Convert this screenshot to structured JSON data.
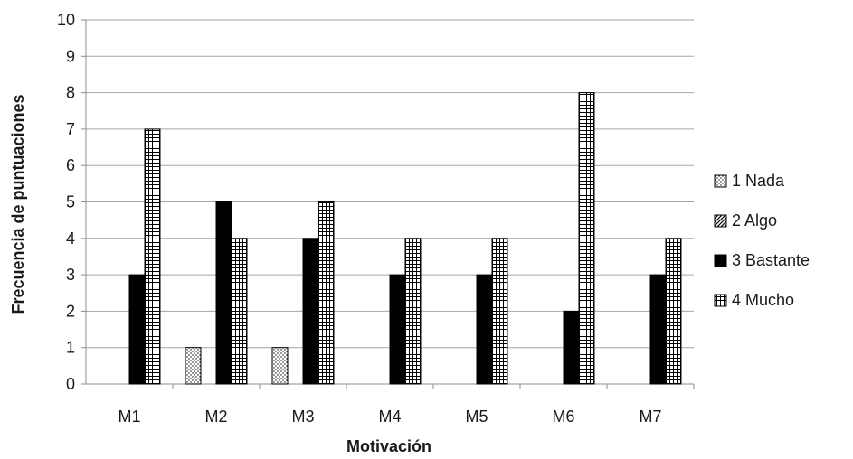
{
  "chart_data": {
    "type": "bar",
    "title": "",
    "xlabel": "Motivación",
    "ylabel": "Frecuencia de puntuaciones",
    "categories": [
      "M1",
      "M2",
      "M3",
      "M4",
      "M5",
      "M6",
      "M7"
    ],
    "ylim": [
      0,
      10
    ],
    "yticks": [
      "0",
      "1",
      "2",
      "3",
      "4",
      "5",
      "6",
      "7",
      "8",
      "9",
      "10"
    ],
    "grid": "horizontal",
    "legend_position": "right",
    "series": [
      {
        "name": "1 Nada",
        "pattern": "dotted",
        "values": [
          0,
          1,
          1,
          0,
          0,
          0,
          0
        ]
      },
      {
        "name": "2 Algo",
        "pattern": "diagonal-hatch",
        "values": [
          0,
          0,
          0,
          0,
          0,
          0,
          0
        ]
      },
      {
        "name": "3 Bastante",
        "pattern": "solid-black",
        "values": [
          3,
          5,
          4,
          3,
          3,
          2,
          3
        ]
      },
      {
        "name": "4 Mucho",
        "pattern": "grid-hatch",
        "values": [
          7,
          4,
          5,
          4,
          4,
          8,
          4
        ]
      }
    ]
  },
  "colors": {
    "axis": "#8c8c8c",
    "grid": "#a6a6a6",
    "bar_outline": "#000000",
    "solid_fill": "#000000"
  }
}
